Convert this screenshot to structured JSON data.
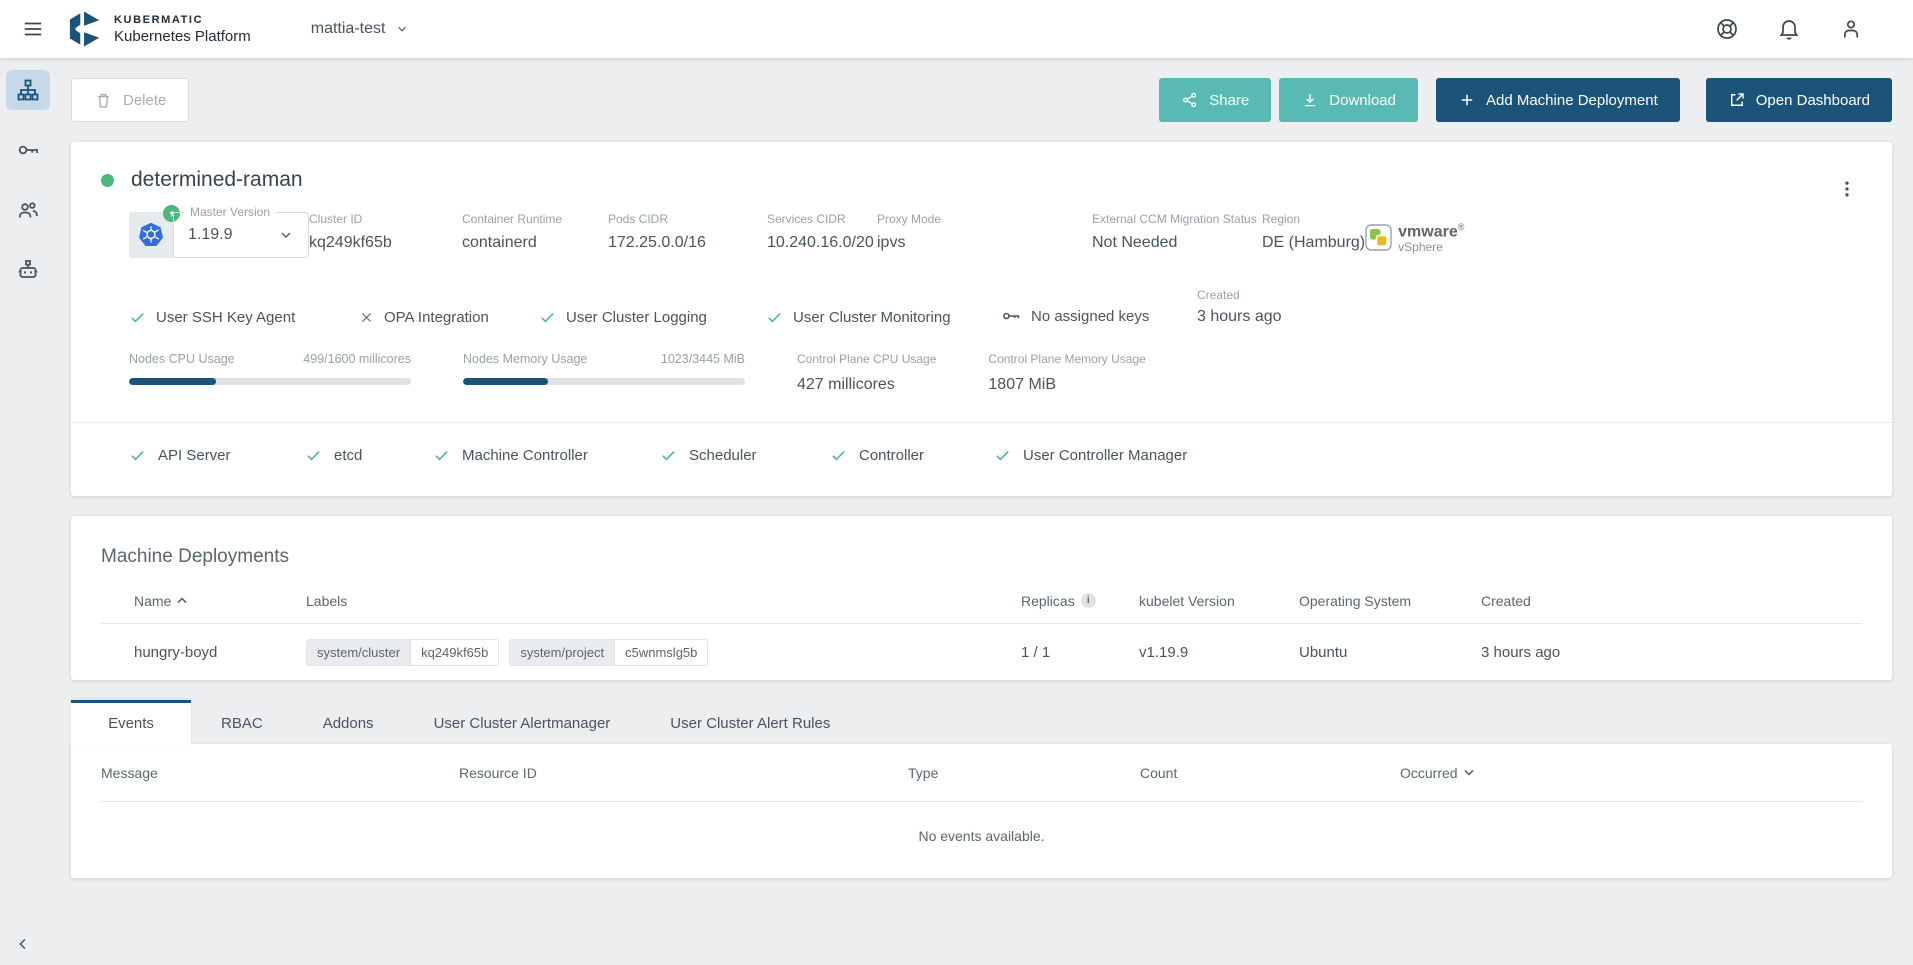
{
  "header": {
    "brand_name": "KUBERMATIC",
    "brand_product": "Kubernetes Platform",
    "project": "mattia-test"
  },
  "toolbar": {
    "delete": "Delete",
    "share": "Share",
    "download": "Download",
    "add_machine_deployment": "Add Machine Deployment",
    "open_dashboard": "Open Dashboard"
  },
  "cluster": {
    "name": "determined-raman",
    "master_version_label": "Master Version",
    "master_version": "1.19.9",
    "info": [
      {
        "label": "Cluster ID",
        "value": "kq249kf65b"
      },
      {
        "label": "Container Runtime",
        "value": "containerd"
      },
      {
        "label": "Pods CIDR",
        "value": "172.25.0.0/16"
      },
      {
        "label": "Services CIDR",
        "value": "10.240.16.0/20"
      },
      {
        "label": "Proxy Mode",
        "value": "ipvs"
      },
      {
        "label": "External CCM Migration Status",
        "value": "Not Needed"
      },
      {
        "label": "Region",
        "value": "DE (Hamburg)"
      }
    ],
    "provider": {
      "brand": "vmware",
      "trademark": "®",
      "product": "vSphere"
    },
    "features": [
      {
        "label": "User SSH Key Agent",
        "enabled": true
      },
      {
        "label": "OPA Integration",
        "enabled": false
      },
      {
        "label": "User Cluster Logging",
        "enabled": true
      },
      {
        "label": "User Cluster Monitoring",
        "enabled": true
      }
    ],
    "ssh_keys": "No assigned keys",
    "created_label": "Created",
    "created_value": "3 hours ago",
    "metrics": {
      "nodes_cpu": {
        "label": "Nodes CPU Usage",
        "value": "499/1600 millicores",
        "percent": 31
      },
      "nodes_memory": {
        "label": "Nodes Memory Usage",
        "value": "1023/3445 MiB",
        "percent": 30
      },
      "control_plane_cpu": {
        "label": "Control Plane CPU Usage",
        "value": "427 millicores"
      },
      "control_plane_memory": {
        "label": "Control Plane Memory Usage",
        "value": "1807 MiB"
      }
    },
    "health": [
      "API Server",
      "etcd",
      "Machine Controller",
      "Scheduler",
      "Controller",
      "User Controller Manager"
    ]
  },
  "machine_deployments": {
    "title": "Machine Deployments",
    "columns": {
      "name": "Name",
      "labels": "Labels",
      "replicas": "Replicas",
      "kubelet_version": "kubelet Version",
      "operating_system": "Operating System",
      "created": "Created"
    },
    "rows": [
      {
        "name": "hungry-boyd",
        "labels": [
          {
            "key": "system/cluster",
            "value": "kq249kf65b"
          },
          {
            "key": "system/project",
            "value": "c5wnmslg5b"
          }
        ],
        "replicas": "1 / 1",
        "kubelet_version": "v1.19.9",
        "operating_system": "Ubuntu",
        "created": "3 hours ago"
      }
    ]
  },
  "tabs": {
    "items": [
      "Events",
      "RBAC",
      "Addons",
      "User Cluster Alertmanager",
      "User Cluster Alert Rules"
    ],
    "active": "Events"
  },
  "events": {
    "columns": [
      "Message",
      "Resource ID",
      "Type",
      "Count",
      "Occurred"
    ],
    "empty": "No events available."
  },
  "colors": {
    "primary": "#1B5379",
    "teal": "#58BAB2",
    "green": "#4DB780",
    "k8s_blue": "#326CE5"
  }
}
